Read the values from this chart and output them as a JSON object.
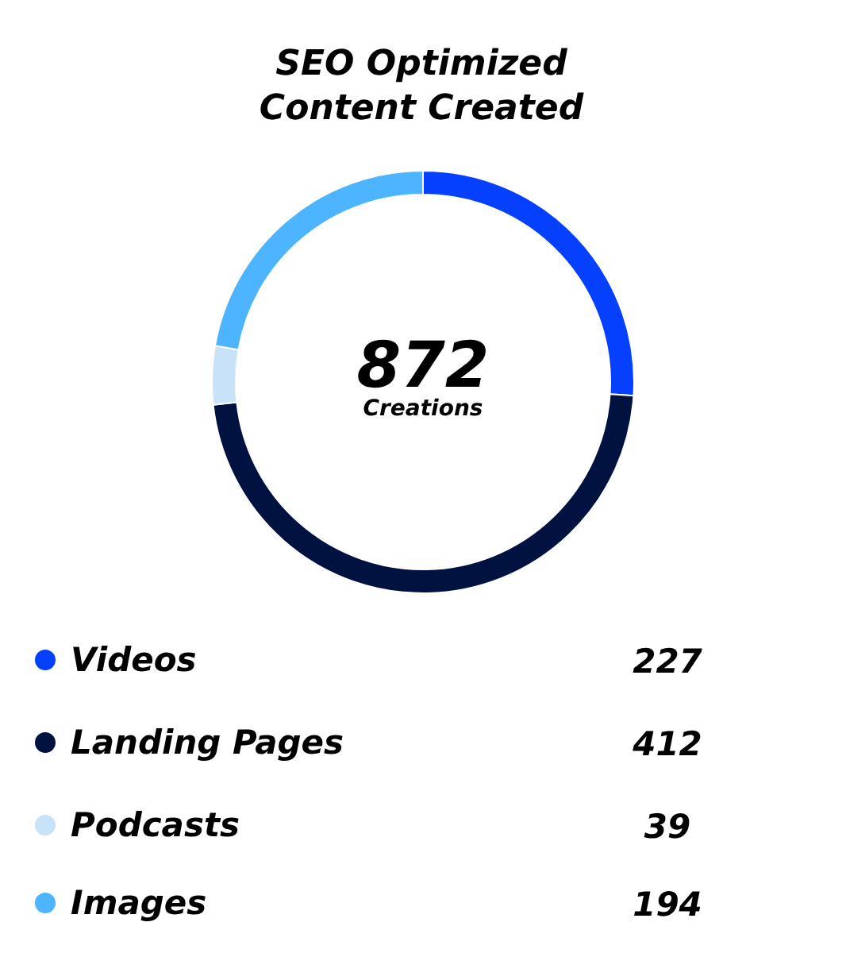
{
  "chart_data": {
    "type": "donut",
    "title": "SEO Optimized\nContent Created",
    "categories": [
      "Videos",
      "Landing Pages",
      "Podcasts",
      "Images"
    ],
    "values": [
      227,
      412,
      39,
      194
    ],
    "colors": [
      "#0540ff",
      "#001240",
      "#c8e2fa",
      "#4db5ff"
    ],
    "annotations": [
      "872",
      "Creations"
    ],
    "data_labels": true,
    "legend": "bottom"
  }
}
